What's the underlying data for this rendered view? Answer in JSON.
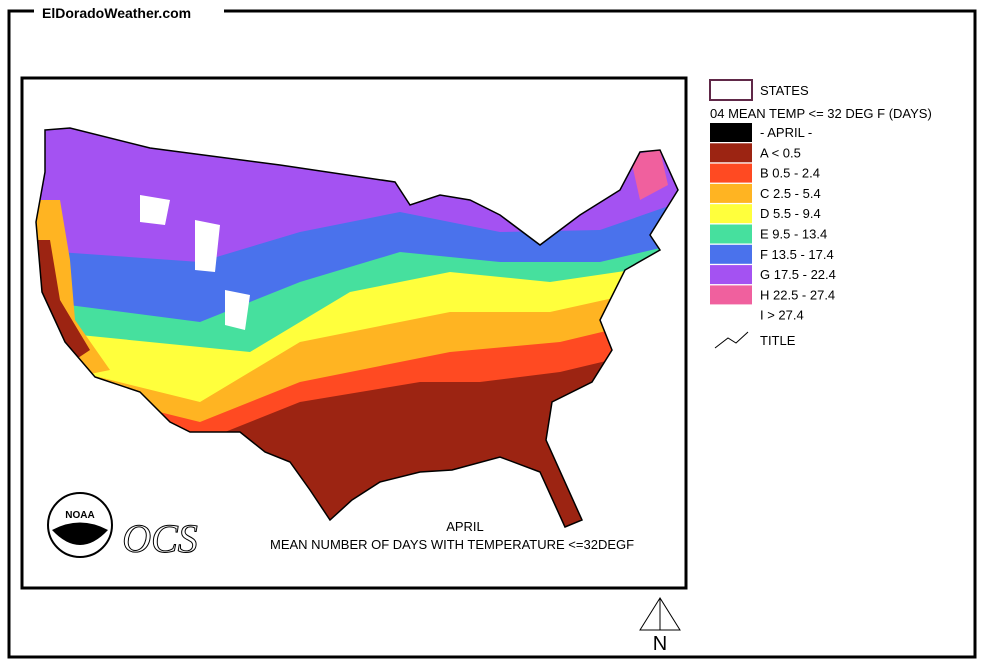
{
  "header": {
    "site": "ElDoradoWeather.com"
  },
  "map": {
    "caption_month": "APRIL",
    "caption": "MEAN NUMBER OF DAYS WITH TEMPERATURE <=32DEGF",
    "logo_noaa": "NOAA",
    "logo_ocs": "OCS",
    "north": "N"
  },
  "legend": {
    "states": "STATES",
    "title": "04 MEAN TEMP <= 32 DEG F (DAYS)",
    "items": [
      {
        "label": "- APRIL -",
        "color": "#000000"
      },
      {
        "label": "A < 0.5",
        "color": "#9c2412"
      },
      {
        "label": "B 0.5 - 2.4",
        "color": "#ff4a22"
      },
      {
        "label": "C 2.5 - 5.4",
        "color": "#ffb422"
      },
      {
        "label": "D 5.5 - 9.4",
        "color": "#ffff3c"
      },
      {
        "label": "E 9.5 - 13.4",
        "color": "#46e09e"
      },
      {
        "label": "F 13.5 - 17.4",
        "color": "#4a72ec"
      },
      {
        "label": "G 17.5 - 22.4",
        "color": "#a452f2"
      },
      {
        "label": "H 22.5 - 27.4",
        "color": "#f0609e"
      },
      {
        "label": "I > 27.4",
        "color": "#ffffff"
      }
    ],
    "line_label": "TITLE"
  }
}
